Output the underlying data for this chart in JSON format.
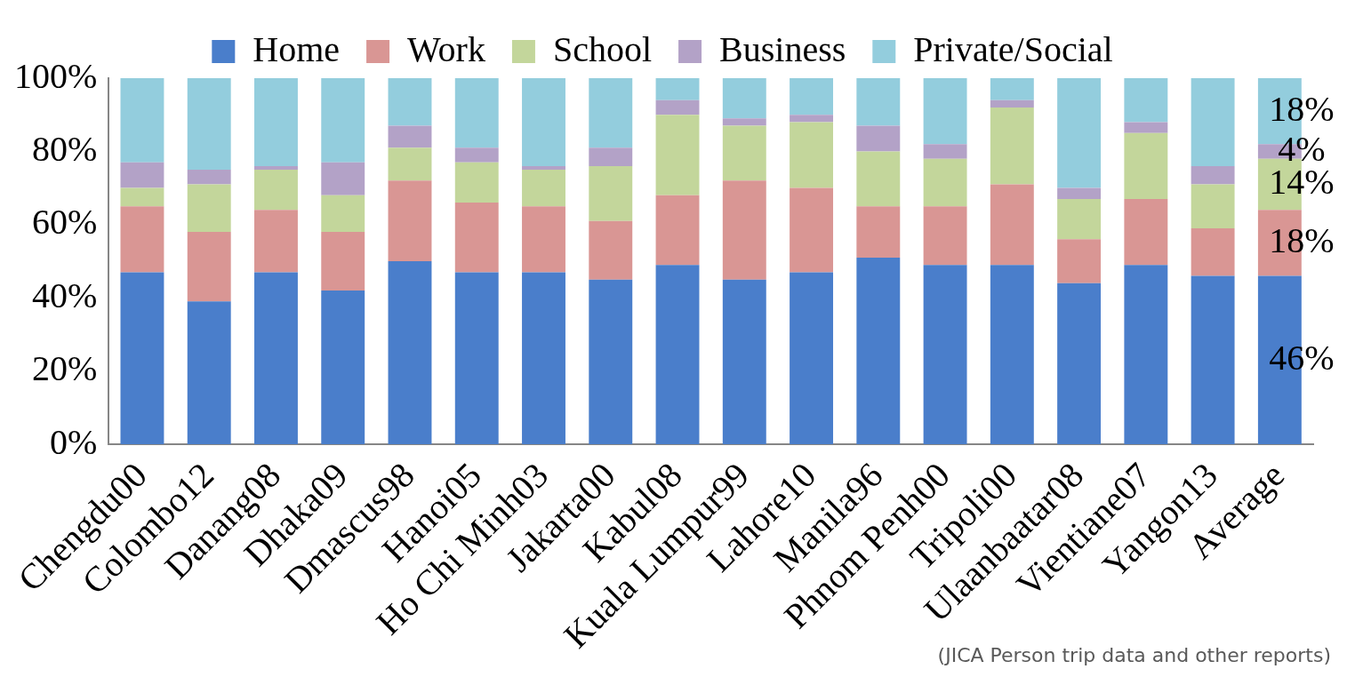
{
  "chart_data": {
    "type": "bar",
    "stacked": true,
    "categories": [
      "Chengdu00",
      "Colombo12",
      "Danang08",
      "Dhaka09",
      "Dmascus98",
      "Hanoi05",
      "Ho Chi Minh03",
      "Jakarta00",
      "Kabul08",
      "Kuala Lumpur99",
      "Lahore10",
      "Manila96",
      "Phnom Penh00",
      "Tripoli00",
      "Ulaanbaatar08",
      "Vientiane07",
      "Yangon13",
      "Average"
    ],
    "series": [
      {
        "name": "Home",
        "color": "#4a7ecb",
        "values": [
          47,
          39,
          47,
          42,
          50,
          47,
          47,
          45,
          49,
          45,
          47,
          51,
          49,
          49,
          44,
          49,
          46,
          46
        ],
        "value_labels": [
          null,
          null,
          null,
          null,
          null,
          null,
          null,
          null,
          null,
          null,
          null,
          null,
          null,
          null,
          null,
          null,
          null,
          "46%"
        ]
      },
      {
        "name": "Work",
        "color": "#d99694",
        "values": [
          18,
          19,
          17,
          16,
          22,
          19,
          18,
          16,
          19,
          27,
          23,
          14,
          16,
          22,
          12,
          18,
          13,
          18
        ],
        "value_labels": [
          null,
          null,
          null,
          null,
          null,
          null,
          null,
          null,
          null,
          null,
          null,
          null,
          null,
          null,
          null,
          null,
          null,
          "18%"
        ]
      },
      {
        "name": "School",
        "color": "#c3d69b",
        "values": [
          5,
          13,
          11,
          10,
          9,
          11,
          10,
          15,
          22,
          15,
          18,
          15,
          13,
          21,
          11,
          18,
          12,
          14
        ],
        "value_labels": [
          null,
          null,
          null,
          null,
          null,
          null,
          null,
          null,
          null,
          null,
          null,
          null,
          null,
          null,
          null,
          null,
          null,
          "14%"
        ]
      },
      {
        "name": "Business",
        "color": "#b3a2c7",
        "values": [
          7,
          4,
          1,
          9,
          6,
          4,
          1,
          5,
          4,
          2,
          2,
          7,
          4,
          2,
          3,
          3,
          5,
          4
        ],
        "value_labels": [
          null,
          null,
          null,
          null,
          null,
          null,
          null,
          null,
          null,
          null,
          null,
          null,
          null,
          null,
          null,
          null,
          null,
          "4%"
        ]
      },
      {
        "name": "Private/Social",
        "color": "#93cddd",
        "values": [
          23,
          25,
          24,
          23,
          13,
          19,
          24,
          19,
          6,
          11,
          10,
          13,
          18,
          6,
          30,
          12,
          24,
          18
        ],
        "value_labels": [
          null,
          null,
          null,
          null,
          null,
          null,
          null,
          null,
          null,
          null,
          null,
          null,
          null,
          null,
          null,
          null,
          null,
          "18%"
        ]
      }
    ],
    "ylim": [
      0,
      100
    ],
    "yticks": [
      {
        "value": 0,
        "label": "0%"
      },
      {
        "value": 20,
        "label": "20%"
      },
      {
        "value": 40,
        "label": "40%"
      },
      {
        "value": 60,
        "label": "60%"
      },
      {
        "value": 80,
        "label": "80%"
      },
      {
        "value": 100,
        "label": "100%"
      }
    ],
    "grid": false,
    "legend": "top",
    "annotations": [
      "(JICA Person trip data and other reports)"
    ]
  }
}
